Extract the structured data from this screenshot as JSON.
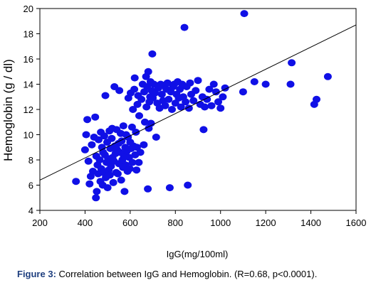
{
  "caption": {
    "label": "Figure 3:",
    "text": " Correlation between IgG and Hemoglobin. (R=0.68, p<0.0001)."
  },
  "colors": {
    "points": "#1010e6",
    "line": "#000000",
    "axes": "#000000"
  },
  "chart_data": {
    "type": "scatter",
    "xlabel": "IgG(mg/100ml)",
    "ylabel": "Hemoglobin (g / dl)",
    "xlim": [
      200,
      1600
    ],
    "ylim": [
      4,
      20
    ],
    "xticks": [
      200,
      400,
      600,
      800,
      1000,
      1200,
      1400,
      1600
    ],
    "yticks": [
      4,
      6,
      8,
      10,
      12,
      14,
      16,
      18,
      20
    ],
    "grid": false,
    "trendline": {
      "x": [
        200,
        1600
      ],
      "y": [
        6.4,
        18.7
      ]
    },
    "points": [
      [
        360,
        6.3
      ],
      [
        400,
        8.8
      ],
      [
        405,
        10.0
      ],
      [
        410,
        11.2
      ],
      [
        415,
        7.9
      ],
      [
        420,
        6.1
      ],
      [
        425,
        6.7
      ],
      [
        430,
        9.2
      ],
      [
        435,
        7.1
      ],
      [
        440,
        9.8
      ],
      [
        445,
        11.4
      ],
      [
        448,
        5.0
      ],
      [
        450,
        8.3
      ],
      [
        452,
        5.5
      ],
      [
        455,
        7.6
      ],
      [
        458,
        6.9
      ],
      [
        460,
        9.6
      ],
      [
        465,
        8.0
      ],
      [
        468,
        6.3
      ],
      [
        470,
        10.2
      ],
      [
        472,
        7.3
      ],
      [
        475,
        9.0
      ],
      [
        478,
        6.0
      ],
      [
        480,
        8.6
      ],
      [
        482,
        7.0
      ],
      [
        485,
        9.9
      ],
      [
        488,
        8.4
      ],
      [
        490,
        13.1
      ],
      [
        492,
        6.6
      ],
      [
        495,
        7.8
      ],
      [
        498,
        9.4
      ],
      [
        500,
        5.8
      ],
      [
        502,
        8.1
      ],
      [
        505,
        7.2
      ],
      [
        508,
        10.3
      ],
      [
        510,
        6.8
      ],
      [
        512,
        8.9
      ],
      [
        515,
        7.5
      ],
      [
        518,
        9.7
      ],
      [
        520,
        10.5
      ],
      [
        522,
        8.2
      ],
      [
        525,
        6.2
      ],
      [
        528,
        7.9
      ],
      [
        530,
        13.8
      ],
      [
        532,
        9.1
      ],
      [
        535,
        8.5
      ],
      [
        538,
        7.0
      ],
      [
        540,
        10.4
      ],
      [
        542,
        8.8
      ],
      [
        545,
        6.9
      ],
      [
        548,
        9.3
      ],
      [
        550,
        7.7
      ],
      [
        552,
        13.5
      ],
      [
        555,
        8.6
      ],
      [
        558,
        10.1
      ],
      [
        560,
        6.4
      ],
      [
        562,
        9.5
      ],
      [
        565,
        8.0
      ],
      [
        568,
        7.4
      ],
      [
        570,
        10.7
      ],
      [
        572,
        8.3
      ],
      [
        575,
        5.5
      ],
      [
        578,
        9.0
      ],
      [
        580,
        7.6
      ],
      [
        582,
        10.0
      ],
      [
        585,
        8.7
      ],
      [
        588,
        7.1
      ],
      [
        590,
        9.8
      ],
      [
        592,
        12.9
      ],
      [
        595,
        8.2
      ],
      [
        598,
        7.3
      ],
      [
        600,
        9.4
      ],
      [
        602,
        13.3
      ],
      [
        605,
        8.9
      ],
      [
        608,
        10.6
      ],
      [
        610,
        7.8
      ],
      [
        612,
        12.0
      ],
      [
        615,
        9.1
      ],
      [
        618,
        13.6
      ],
      [
        620,
        14.5
      ],
      [
        622,
        8.4
      ],
      [
        625,
        10.2
      ],
      [
        628,
        7.2
      ],
      [
        630,
        9.0
      ],
      [
        632,
        12.4
      ],
      [
        635,
        13.1
      ],
      [
        638,
        7.8
      ],
      [
        640,
        11.5
      ],
      [
        645,
        8.6
      ],
      [
        650,
        12.8
      ],
      [
        655,
        14.0
      ],
      [
        660,
        9.2
      ],
      [
        662,
        13.4
      ],
      [
        665,
        11.0
      ],
      [
        670,
        14.6
      ],
      [
        672,
        12.2
      ],
      [
        675,
        13.8
      ],
      [
        678,
        5.7
      ],
      [
        680,
        15.0
      ],
      [
        682,
        10.5
      ],
      [
        685,
        12.6
      ],
      [
        688,
        13.0
      ],
      [
        690,
        14.2
      ],
      [
        692,
        10.9
      ],
      [
        695,
        13.5
      ],
      [
        698,
        16.4
      ],
      [
        700,
        12.9
      ],
      [
        705,
        14.0
      ],
      [
        710,
        13.3
      ],
      [
        715,
        9.8
      ],
      [
        720,
        12.5
      ],
      [
        725,
        13.7
      ],
      [
        730,
        12.1
      ],
      [
        735,
        14.0
      ],
      [
        740,
        13.2
      ],
      [
        745,
        12.7
      ],
      [
        750,
        13.9
      ],
      [
        755,
        12.3
      ],
      [
        760,
        13.6
      ],
      [
        765,
        14.1
      ],
      [
        770,
        12.8
      ],
      [
        775,
        5.8
      ],
      [
        780,
        13.4
      ],
      [
        785,
        12.0
      ],
      [
        790,
        13.8
      ],
      [
        795,
        14.0
      ],
      [
        800,
        12.5
      ],
      [
        805,
        13.2
      ],
      [
        810,
        14.2
      ],
      [
        815,
        12.9
      ],
      [
        820,
        13.6
      ],
      [
        825,
        12.2
      ],
      [
        830,
        14.0
      ],
      [
        835,
        13.0
      ],
      [
        840,
        18.5
      ],
      [
        845,
        12.6
      ],
      [
        850,
        13.8
      ],
      [
        855,
        6.0
      ],
      [
        860,
        12.1
      ],
      [
        865,
        14.1
      ],
      [
        870,
        13.2
      ],
      [
        880,
        12.7
      ],
      [
        890,
        13.5
      ],
      [
        900,
        14.3
      ],
      [
        910,
        12.4
      ],
      [
        920,
        13.0
      ],
      [
        925,
        10.4
      ],
      [
        930,
        12.2
      ],
      [
        940,
        12.8
      ],
      [
        950,
        13.6
      ],
      [
        960,
        12.3
      ],
      [
        970,
        14.0
      ],
      [
        980,
        13.4
      ],
      [
        990,
        12.6
      ],
      [
        1000,
        12.1
      ],
      [
        1010,
        13.0
      ],
      [
        1020,
        13.7
      ],
      [
        1100,
        13.4
      ],
      [
        1105,
        19.6
      ],
      [
        1150,
        14.2
      ],
      [
        1200,
        14.0
      ],
      [
        1310,
        14.0
      ],
      [
        1315,
        15.7
      ],
      [
        1415,
        12.4
      ],
      [
        1425,
        12.8
      ],
      [
        1475,
        14.6
      ]
    ]
  }
}
